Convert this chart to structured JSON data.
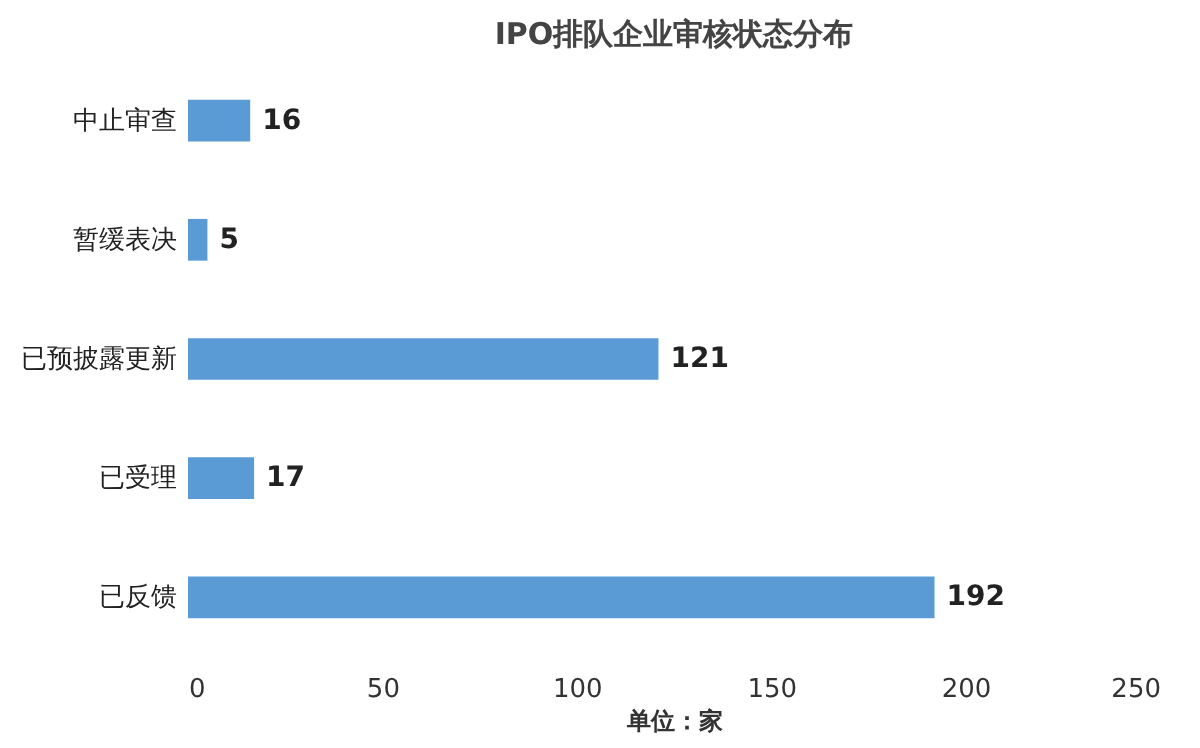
{
  "chart_data": {
    "type": "bar",
    "orientation": "horizontal",
    "title": "IPO排队企业审核状态分布",
    "xlabel": "单位：家",
    "categories": [
      "中止审查",
      "暂缓表决",
      "已预披露更新",
      "已受理",
      "已反馈"
    ],
    "values": [
      16,
      5,
      121,
      17,
      192
    ],
    "color": "#5b9bd5",
    "xlim": [
      0,
      250
    ],
    "xticks": [
      0,
      50,
      100,
      150,
      200,
      250
    ],
    "grid": false,
    "data_labels": true
  }
}
